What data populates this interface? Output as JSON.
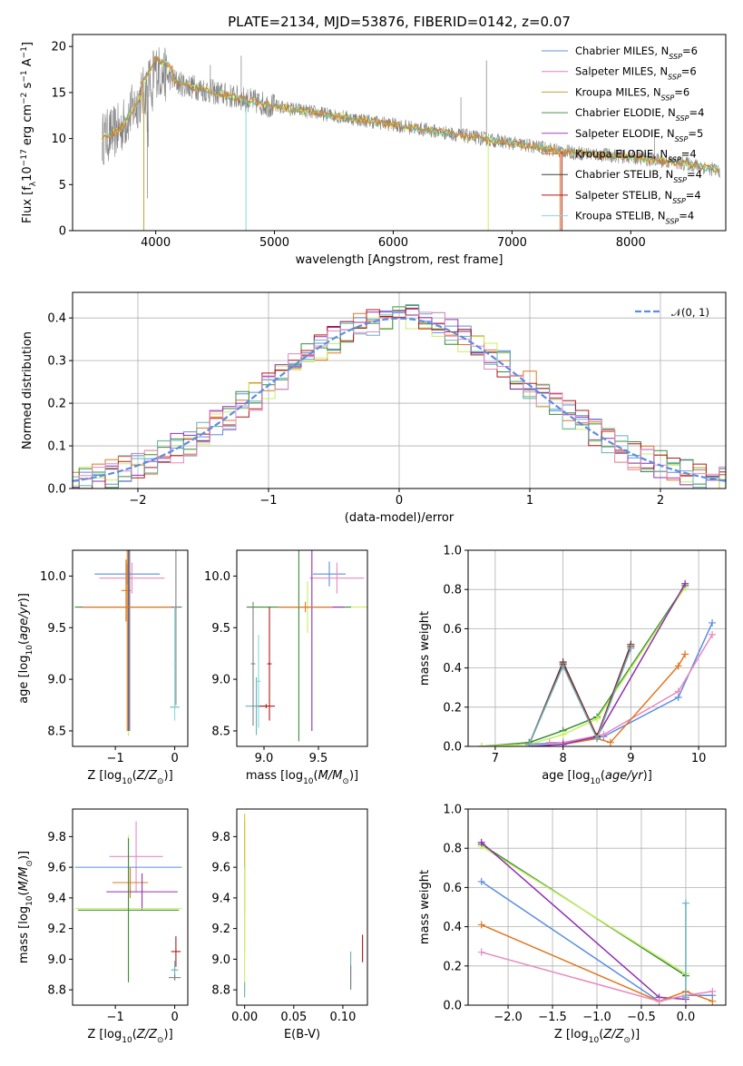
{
  "title": "PLATE=2134, MJD=53876, FIBERID=0142, z=0.07",
  "colors": {
    "Chabrier MILES": "#6b8fd6",
    "Salpeter MILES": "#e87fbf",
    "Kroupa MILES": "#c8a040",
    "Chabrier ELODIE": "#4f8f4f",
    "Salpeter ELODIE": "#a040c0",
    "Kroupa ELODIE": "#e08040",
    "Chabrier STELIB": "#404040",
    "Salpeter STELIB": "#b01818",
    "Kroupa STELIB": "#80dcdc",
    "data": "#808080",
    "lime": "#c8f060",
    "blue": "#5a8ee0",
    "orange": "#e07820",
    "pink": "#e888c0",
    "purple": "#9030b0",
    "green": "#3c8c3c",
    "teal": "#68b0b8",
    "gold": "#d0c820"
  },
  "chart_data": [
    {
      "id": "spectrum",
      "type": "line",
      "xlabel": "wavelength [Angstrom, rest frame]",
      "ylabel": "Flux [fλ10⁻¹⁷ erg cm⁻² s⁻¹ A⁻¹]",
      "xlim": [
        3300,
        8800
      ],
      "ylim": [
        0,
        21.3
      ],
      "xticks": [
        4000,
        5000,
        6000,
        7000,
        8000
      ],
      "yticks": [
        0,
        5,
        10,
        15,
        20
      ],
      "legend_position": "top-right",
      "legend": [
        "Chabrier MILES, N_SSP=6",
        "Salpeter MILES, N_SSP=6",
        "Kroupa MILES, N_SSP=6",
        "Chabrier ELODIE, N_SSP=4",
        "Salpeter ELODIE, N_SSP=5",
        "Kroupa ELODIE, N_SSP=4",
        "Chabrier STELIB, N_SSP=4",
        "Salpeter STELIB, N_SSP=4",
        "Kroupa STELIB, N_SSP=4"
      ],
      "continuum": {
        "x": [
          3550,
          3700,
          3900,
          4000,
          4200,
          4500,
          5000,
          5500,
          6000,
          6500,
          7000,
          7500,
          8000,
          8500,
          8750
        ],
        "y": [
          10,
          11,
          15,
          17.5,
          16,
          15,
          13.5,
          12.5,
          11.5,
          10.5,
          9.5,
          8.5,
          8,
          7.2,
          6.5
        ]
      }
    },
    {
      "id": "residuals",
      "type": "histogram",
      "xlabel": "(data-model)/error",
      "ylabel": "Normed distribution",
      "xlim": [
        -2.5,
        2.5
      ],
      "ylim": [
        0,
        0.46
      ],
      "xticks": [
        -2,
        -1,
        0,
        1,
        2
      ],
      "yticks": [
        0.0,
        0.1,
        0.2,
        0.3,
        0.4
      ],
      "grid": true,
      "legend_position": "top-right",
      "legend": [
        "𝒩(0, 1)"
      ],
      "bin_width": 0.1,
      "gaussian": {
        "mean": 0,
        "sigma": 1
      }
    },
    {
      "id": "age_vs_Z",
      "type": "errorbar",
      "xlabel": "Z [log₁₀(Z/Z⊙)]",
      "ylabel": "age  [log₁₀(age/yr)]",
      "xlim": [
        -1.72,
        0.22
      ],
      "ylim": [
        8.35,
        10.25
      ],
      "xticks": [
        -1,
        0
      ],
      "yticks": [
        8.5,
        9.0,
        9.5,
        10.0
      ],
      "points": [
        {
          "x": -0.8,
          "y": 10.02,
          "xerr": 0.55,
          "yerr": 0.1,
          "c": "blue"
        },
        {
          "x": -0.72,
          "y": 9.98,
          "xerr": 0.55,
          "yerr": 0.15,
          "c": "pink"
        },
        {
          "x": -0.82,
          "y": 9.86,
          "xerr": 0.08,
          "yerr": 0.3,
          "c": "orange"
        },
        {
          "x": -0.78,
          "y": 9.7,
          "xerr": 0.9,
          "yerr": 1.25,
          "c": "lime"
        },
        {
          "x": -0.78,
          "y": 9.7,
          "xerr": 0.9,
          "yerr": 1.2,
          "c": "green"
        },
        {
          "x": -0.76,
          "y": 9.7,
          "xerr": 0.8,
          "yerr": 1.2,
          "c": "purple"
        },
        {
          "x": -0.8,
          "y": 9.7,
          "xerr": 0.75,
          "yerr": 1.2,
          "c": "orange"
        },
        {
          "x": 0.02,
          "y": 9.7,
          "xerr": 0.05,
          "yerr": 0.95,
          "c": "data"
        },
        {
          "x": 0.0,
          "y": 8.73,
          "xerr": 0.08,
          "yerr": 0.02,
          "c": "teal"
        },
        {
          "x": 0.0,
          "y": 9.15,
          "xerr": 0.02,
          "yerr": 0.55,
          "c": "Kroupa STELIB"
        }
      ]
    },
    {
      "id": "age_vs_mass",
      "type": "errorbar",
      "xlabel": "mass [log₁₀(M/M⊙)]",
      "ylabel": "",
      "xlim": [
        8.75,
        9.95
      ],
      "ylim": [
        8.35,
        10.25
      ],
      "xticks": [
        9.0,
        9.5
      ],
      "yticks": [
        8.5,
        9.0,
        9.5,
        10.0
      ],
      "points": [
        {
          "x": 9.6,
          "y": 10.02,
          "xerr": 0.15,
          "yerr": 0.12,
          "c": "blue"
        },
        {
          "x": 9.67,
          "y": 9.98,
          "xerr": 0.25,
          "yerr": 0.15,
          "c": "pink"
        },
        {
          "x": 9.4,
          "y": 9.7,
          "xerr": 0.55,
          "yerr": 0.25,
          "c": "lime"
        },
        {
          "x": 9.32,
          "y": 9.7,
          "xerr": 0.48,
          "yerr": 1.3,
          "c": "green"
        },
        {
          "x": 9.44,
          "y": 9.7,
          "xerr": 0.3,
          "yerr": 1.2,
          "c": "purple"
        },
        {
          "x": 9.38,
          "y": 9.7,
          "xerr": 0.25,
          "yerr": 0.05,
          "c": "orange"
        },
        {
          "x": 8.93,
          "y": 8.74,
          "xerr": 0.1,
          "yerr": 0.28,
          "c": "teal"
        },
        {
          "x": 8.9,
          "y": 9.15,
          "xerr": 0.02,
          "yerr": 0.6,
          "c": "data"
        },
        {
          "x": 9.05,
          "y": 9.15,
          "xerr": 0.02,
          "yerr": 0.55,
          "c": "Salpeter STELIB"
        },
        {
          "x": 9.02,
          "y": 8.74,
          "xerr": 0.08,
          "yerr": 0.02,
          "c": "Salpeter STELIB"
        },
        {
          "x": 8.95,
          "y": 8.98,
          "xerr": 0.02,
          "yerr": 0.45,
          "c": "Kroupa STELIB"
        }
      ]
    },
    {
      "id": "massweight_vs_age",
      "type": "line",
      "xlabel": "age  [log₁₀(age/yr)]",
      "ylabel": "mass weight",
      "xlim": [
        6.6,
        10.4
      ],
      "ylim": [
        0,
        1.0
      ],
      "xticks": [
        7,
        8,
        9,
        10
      ],
      "yticks": [
        0.0,
        0.2,
        0.4,
        0.6,
        0.8,
        1.0
      ],
      "grid": true,
      "series": [
        {
          "c": "blue",
          "x": [
            7.5,
            8.0,
            8.6,
            9.7,
            10.2
          ],
          "y": [
            0.01,
            0.02,
            0.05,
            0.25,
            0.63
          ]
        },
        {
          "c": "pink",
          "x": [
            7.8,
            8.0,
            8.6,
            9.7,
            10.2
          ],
          "y": [
            0.02,
            0.02,
            0.06,
            0.28,
            0.57
          ]
        },
        {
          "c": "orange",
          "x": [
            8.0,
            8.5,
            8.7,
            9.7,
            9.8
          ],
          "y": [
            0.01,
            0.04,
            0.02,
            0.41,
            0.47
          ]
        },
        {
          "c": "green",
          "x": [
            6.8,
            7.5,
            8.0,
            8.5,
            9.8
          ],
          "y": [
            0.0,
            0.02,
            0.08,
            0.15,
            0.82
          ]
        },
        {
          "c": "lime",
          "x": [
            6.8,
            7.5,
            8.0,
            8.5,
            9.8
          ],
          "y": [
            0.0,
            0.01,
            0.06,
            0.14,
            0.81
          ]
        },
        {
          "c": "purple",
          "x": [
            7.5,
            8.0,
            8.5,
            9.8
          ],
          "y": [
            0.0,
            0.01,
            0.05,
            0.83
          ]
        },
        {
          "c": "Chabrier STELIB",
          "x": [
            7.5,
            8.0,
            8.5,
            9.0
          ],
          "y": [
            0.01,
            0.43,
            0.05,
            0.52
          ]
        },
        {
          "c": "Salpeter STELIB",
          "x": [
            7.5,
            8.0,
            8.5,
            9.0
          ],
          "y": [
            0.01,
            0.42,
            0.05,
            0.51
          ]
        },
        {
          "c": "teal",
          "x": [
            7.5,
            8.0,
            8.5,
            9.0
          ],
          "y": [
            0.01,
            0.41,
            0.04,
            0.5
          ]
        }
      ]
    },
    {
      "id": "mass_vs_Z",
      "type": "errorbar",
      "xlabel": "Z [log₁₀(Z/Z⊙)]",
      "ylabel": "mass [log₁₀(M/M⊙)]",
      "xlim": [
        -1.72,
        0.22
      ],
      "ylim": [
        8.7,
        9.98
      ],
      "xticks": [
        -1,
        0
      ],
      "yticks": [
        8.8,
        9.0,
        9.2,
        9.4,
        9.6,
        9.8
      ],
      "points": [
        {
          "x": -0.65,
          "y": 9.67,
          "xerr": 0.45,
          "yerr": 0.23,
          "c": "pink"
        },
        {
          "x": -0.78,
          "y": 9.6,
          "xerr": 0.9,
          "yerr": 0.18,
          "c": "blue"
        },
        {
          "x": -0.75,
          "y": 9.5,
          "xerr": 0.3,
          "yerr": 0.1,
          "c": "orange"
        },
        {
          "x": -0.55,
          "y": 9.44,
          "xerr": 0.6,
          "yerr": 0.12,
          "c": "purple"
        },
        {
          "x": -0.78,
          "y": 9.33,
          "xerr": 0.9,
          "yerr": 0.48,
          "c": "lime"
        },
        {
          "x": -0.78,
          "y": 9.32,
          "xerr": 0.85,
          "yerr": 0.47,
          "c": "green"
        },
        {
          "x": 0.02,
          "y": 9.05,
          "xerr": 0.08,
          "yerr": 0.1,
          "c": "Salpeter STELIB"
        },
        {
          "x": 0.0,
          "y": 8.93,
          "xerr": 0.06,
          "yerr": 0.06,
          "c": "teal"
        },
        {
          "x": 0.0,
          "y": 8.88,
          "xerr": 0.1,
          "yerr": 0.02,
          "c": "data"
        }
      ]
    },
    {
      "id": "mass_vs_EBV",
      "type": "errorbar",
      "xlabel": "E(B-V)",
      "ylabel": "",
      "xlim": [
        -0.008,
        0.125
      ],
      "ylim": [
        8.7,
        9.98
      ],
      "xticks": [
        0.0,
        0.05,
        0.1
      ],
      "yticks": [
        8.8,
        9.0,
        9.2,
        9.4,
        9.6,
        9.8
      ],
      "points": [
        {
          "x": 0.0,
          "y": 9.6,
          "xerr": 0.0,
          "yerr": 0.3,
          "c": "pink"
        },
        {
          "x": 0.0,
          "y": 9.5,
          "xerr": 0.0,
          "yerr": 0.45,
          "c": "gold"
        },
        {
          "x": 0.0,
          "y": 9.2,
          "xerr": 0.0,
          "yerr": 0.4,
          "c": "lime"
        },
        {
          "x": 0.0,
          "y": 8.8,
          "xerr": 0.0,
          "yerr": 0.05,
          "c": "teal"
        },
        {
          "x": 0.108,
          "y": 8.93,
          "xerr": 0.0,
          "yerr": 0.12,
          "c": "teal"
        },
        {
          "x": 0.108,
          "y": 8.88,
          "xerr": 0.0,
          "yerr": 0.08,
          "c": "data"
        },
        {
          "x": 0.12,
          "y": 9.07,
          "xerr": 0.0,
          "yerr": 0.09,
          "c": "Salpeter STELIB"
        }
      ]
    },
    {
      "id": "massweight_vs_Z",
      "type": "line",
      "xlabel": "Z [log₁₀(Z/Z⊙)]",
      "ylabel": "mass weight",
      "xlim": [
        -2.45,
        0.45
      ],
      "ylim": [
        0,
        1.0
      ],
      "xticks": [
        -2.0,
        -1.5,
        -1.0,
        -0.5,
        0.0
      ],
      "yticks": [
        0.0,
        0.2,
        0.4,
        0.6,
        0.8,
        1.0
      ],
      "grid": true,
      "series": [
        {
          "c": "green",
          "x": [
            -2.3,
            0.0
          ],
          "y": [
            0.82,
            0.15
          ]
        },
        {
          "c": "lime",
          "x": [
            -2.3,
            0.0
          ],
          "y": [
            0.81,
            0.16
          ]
        },
        {
          "c": "purple",
          "x": [
            -2.3,
            -0.3,
            0.0
          ],
          "y": [
            0.83,
            0.04,
            0.03
          ]
        },
        {
          "c": "blue",
          "x": [
            -2.3,
            -0.3,
            0.0,
            0.3
          ],
          "y": [
            0.63,
            0.02,
            0.05,
            0.05
          ]
        },
        {
          "c": "orange",
          "x": [
            -2.3,
            -0.3,
            0.0,
            0.3
          ],
          "y": [
            0.41,
            0.02,
            0.07,
            0.02
          ]
        },
        {
          "c": "pink",
          "x": [
            -2.3,
            -0.3,
            0.0,
            0.3
          ],
          "y": [
            0.27,
            0.02,
            0.05,
            0.07
          ]
        },
        {
          "c": "teal",
          "x": [
            0.0,
            0.0
          ],
          "y": [
            0.52,
            0.04
          ]
        }
      ]
    }
  ]
}
